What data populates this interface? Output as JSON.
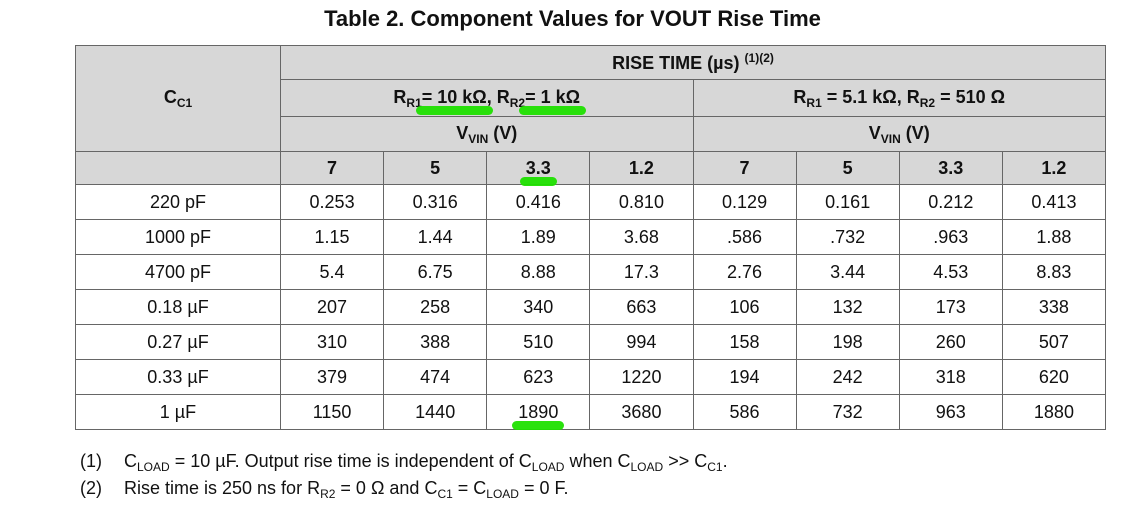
{
  "title": "Table 2. Component Values for VOUT Rise Time",
  "header": {
    "cc1": {
      "main": "C",
      "sub": "C1"
    },
    "rise_time": {
      "text": "RISE TIME (µs)",
      "sup": "(1)(2)"
    },
    "group1": {
      "r1_main": "R",
      "r1_sub": "R1",
      "r1_val": " = 10 kΩ",
      "r2_main": "R",
      "r2_sub": "R2",
      "r2_val": " = 1 kΩ"
    },
    "group2": {
      "r1_main": "R",
      "r1_sub": "R1",
      "r1_val": " = 5.1 kΩ",
      "r2_main": "R",
      "r2_sub": "R2",
      "r2_val": " = 510 Ω"
    },
    "vvin": {
      "main": "V",
      "sub": "VIN",
      "unit": " (V)"
    },
    "voltages": [
      "7",
      "5",
      "3.3",
      "1.2",
      "7",
      "5",
      "3.3",
      "1.2"
    ]
  },
  "rows": [
    {
      "cc1": "220 pF",
      "values": [
        "0.253",
        "0.316",
        "0.416",
        "0.810",
        "0.129",
        "0.161",
        "0.212",
        "0.413"
      ]
    },
    {
      "cc1": "1000 pF",
      "values": [
        "1.15",
        "1.44",
        "1.89",
        "3.68",
        ".586",
        ".732",
        ".963",
        "1.88"
      ]
    },
    {
      "cc1": "4700 pF",
      "values": [
        "5.4",
        "6.75",
        "8.88",
        "17.3",
        "2.76",
        "3.44",
        "4.53",
        "8.83"
      ]
    },
    {
      "cc1": "0.18 µF",
      "values": [
        "207",
        "258",
        "340",
        "663",
        "106",
        "132",
        "173",
        "338"
      ]
    },
    {
      "cc1": "0.27 µF",
      "values": [
        "310",
        "388",
        "510",
        "994",
        "158",
        "198",
        "260",
        "507"
      ]
    },
    {
      "cc1": "0.33 µF",
      "values": [
        "379",
        "474",
        "623",
        "1220",
        "194",
        "242",
        "318",
        "620"
      ]
    },
    {
      "cc1": "1 µF",
      "values": [
        "1150",
        "1440",
        "1890",
        "3680",
        "586",
        "732",
        "963",
        "1880"
      ]
    }
  ],
  "notes": [
    {
      "num": "(1)",
      "parts": [
        "C",
        "LOAD",
        " = 10 µF. Output rise time is independent of C",
        "LOAD",
        " when C",
        "LOAD",
        " >> C",
        "C1",
        "."
      ]
    },
    {
      "num": "(2)",
      "parts": [
        "Rise time is 250 ns for R",
        "R2",
        " = 0 Ω and C",
        "C1",
        " = C",
        "LOAD",
        " = 0 F."
      ]
    }
  ],
  "highlight_color": "#1fe000"
}
